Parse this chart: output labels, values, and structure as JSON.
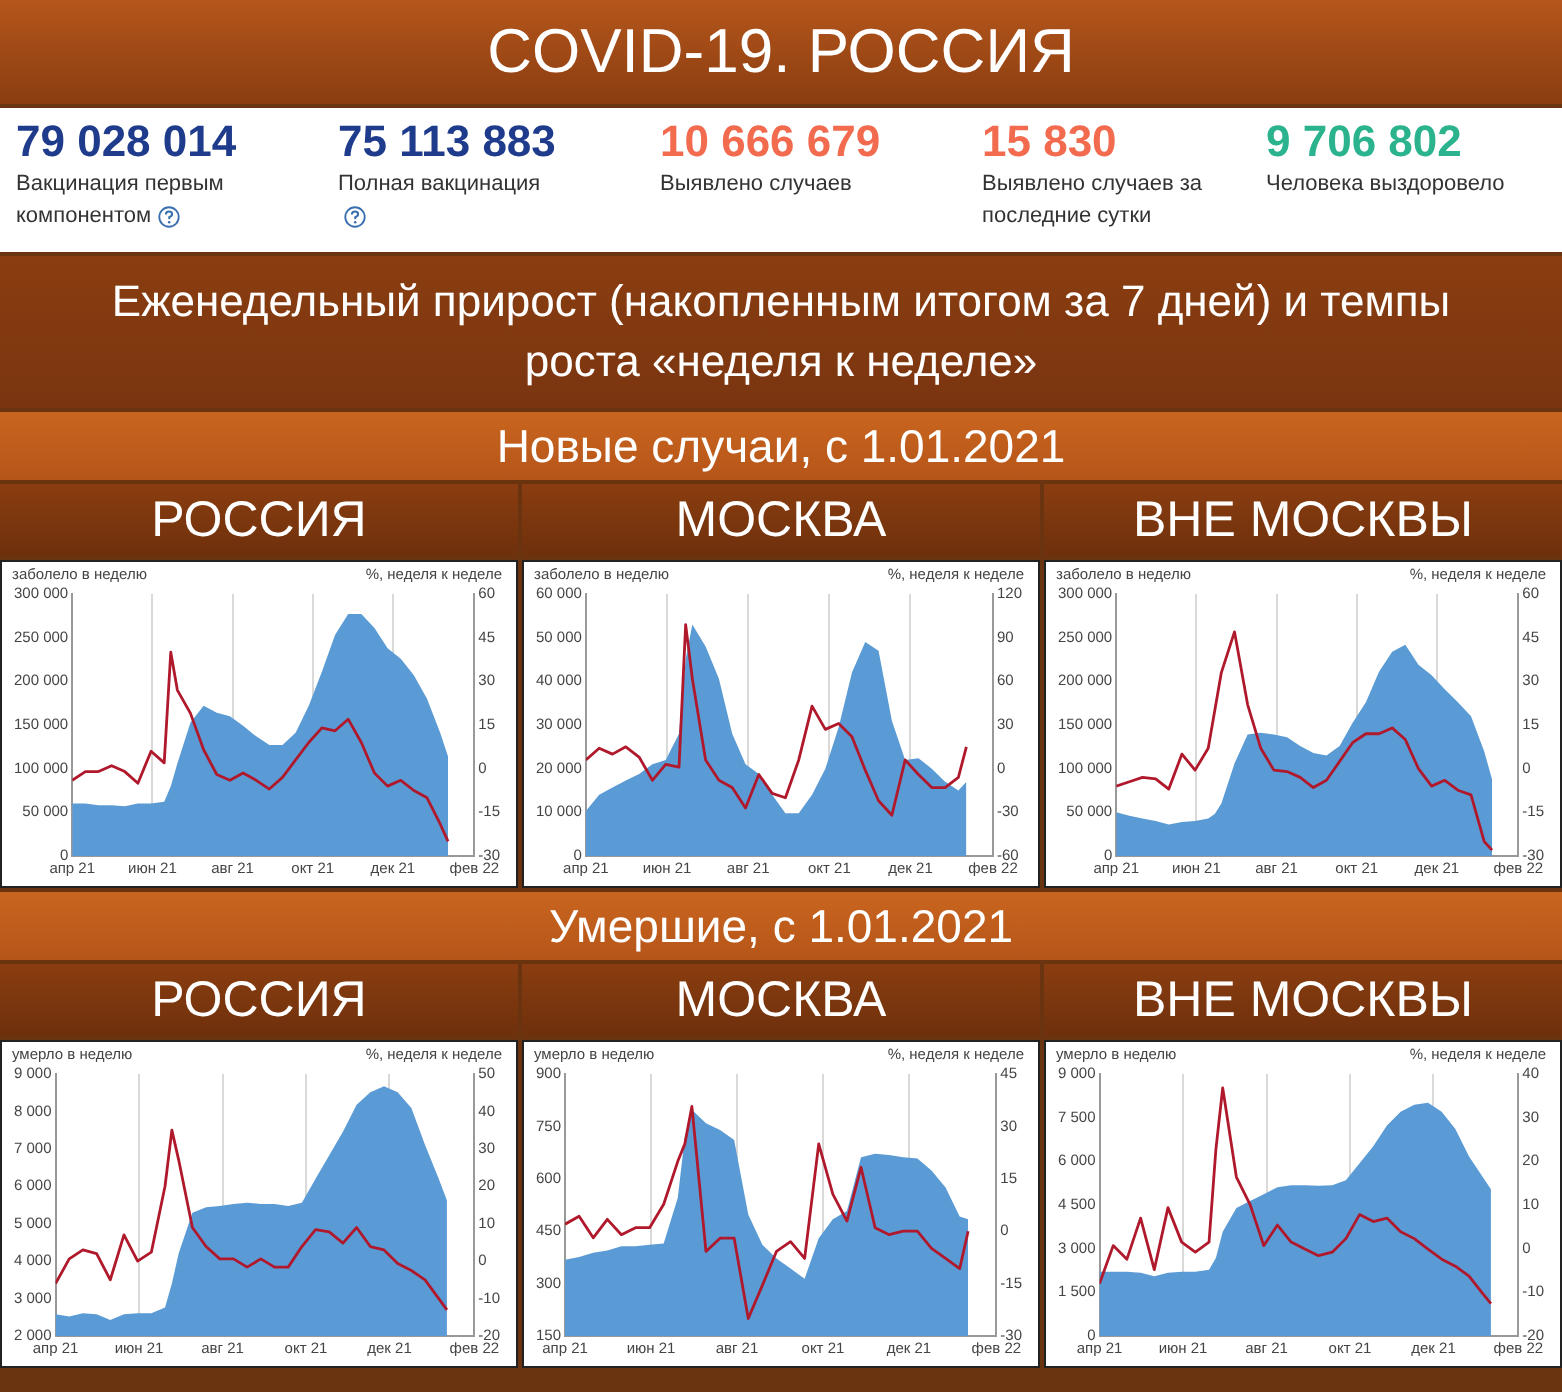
{
  "chart_data": [
    {
      "type": "other",
      "title": "COVID-19. РОССИЯ",
      "subtitle": "Еженедельный прирост (накопленным итогом за 7 дней) и темпы роста «неделя к неделе»",
      "annotations": [
        "79 028 014",
        "Вакцинация первым компонентом",
        "75 113 883",
        "Полная вакцинация",
        "10 666 679",
        "Выявлено случаев",
        "15 830",
        "Выявлено случаев за последние сутки",
        "9 706 802",
        "Человека выздоровело"
      ]
    },
    {
      "type": "other",
      "title": "Новые случаи, с 1.01.2021"
    },
    {
      "type": "area",
      "title": "РОССИЯ",
      "ylabel": "заболело в неделю",
      "y2label": "%, неделя к неделе",
      "grid": "x",
      "marker": "none",
      "x": [
        "2021-04-01",
        "2021-04-11",
        "2021-04-21",
        "2021-05-01",
        "2021-05-11",
        "2021-05-21",
        "2021-05-31",
        "2021-06-10",
        "2021-06-15",
        "2021-06-20",
        "2021-06-30",
        "2021-07-10",
        "2021-07-20",
        "2021-07-30",
        "2021-08-09",
        "2021-08-19",
        "2021-08-29",
        "2021-09-08",
        "2021-09-18",
        "2021-09-28",
        "2021-10-08",
        "2021-10-18",
        "2021-10-28",
        "2021-11-07",
        "2021-11-17",
        "2021-11-27",
        "2021-12-07",
        "2021-12-17",
        "2021-12-27",
        "2022-01-06",
        "2022-01-12"
      ],
      "xlim": [
        "2021-04-01",
        "2022-02-01"
      ],
      "xticks": [
        {
          "value": "2021-04-01",
          "label": "апр 21"
        },
        {
          "value": "2021-06-01",
          "label": "июн 21"
        },
        {
          "value": "2021-08-01",
          "label": "авг 21"
        },
        {
          "value": "2021-10-01",
          "label": "окт 21"
        },
        {
          "value": "2021-12-01",
          "label": "дек 21"
        },
        {
          "value": "2022-02-01",
          "label": "фев 22"
        }
      ],
      "ylim": [
        0,
        300000
      ],
      "yticks": [
        0,
        {
          "value": 50000,
          "label": "50 000"
        },
        {
          "value": 100000,
          "label": "100 000"
        },
        {
          "value": 150000,
          "label": "150 000"
        },
        {
          "value": 200000,
          "label": "200 000"
        },
        {
          "value": 250000,
          "label": "250 000"
        },
        {
          "value": 300000,
          "label": "300 000"
        }
      ],
      "y2lim": [
        -30,
        60
      ],
      "y2ticks": [
        -30,
        -15,
        0,
        15,
        30,
        45,
        60
      ],
      "series": [
        {
          "type": "area",
          "color": "#5b9bd5",
          "values": [
            60000,
            60000,
            58000,
            58000,
            57000,
            60000,
            60000,
            62000,
            80000,
            106000,
            153000,
            172000,
            164000,
            160000,
            149000,
            137000,
            127000,
            127000,
            141000,
            172000,
            211000,
            253000,
            277000,
            277000,
            261000,
            238000,
            226000,
            207000,
            180000,
            141000,
            114000
          ]
        },
        {
          "type": "line",
          "axis": "y2",
          "color": "#b0182c",
          "values": [
            -4,
            -1,
            -1,
            1,
            -1,
            -5,
            6,
            2,
            40,
            27,
            19,
            6.5,
            -2,
            -4,
            -1.5,
            -4,
            -7,
            -3,
            3,
            9,
            14,
            13,
            17,
            9,
            -1.5,
            -6,
            -4,
            -7.5,
            -10,
            -19,
            -25
          ]
        }
      ]
    },
    {
      "type": "area",
      "title": "МОСКВА",
      "ylabel": "заболело в неделю",
      "y2label": "%, неделя к неделе",
      "grid": "x",
      "marker": "none",
      "x": [
        "2021-04-01",
        "2021-04-11",
        "2021-04-21",
        "2021-05-01",
        "2021-05-11",
        "2021-05-21",
        "2021-05-31",
        "2021-06-10",
        "2021-06-15",
        "2021-06-20",
        "2021-06-30",
        "2021-07-10",
        "2021-07-20",
        "2021-07-30",
        "2021-08-09",
        "2021-08-19",
        "2021-08-29",
        "2021-09-08",
        "2021-09-18",
        "2021-09-28",
        "2021-10-08",
        "2021-10-18",
        "2021-10-28",
        "2021-11-07",
        "2021-11-17",
        "2021-11-27",
        "2021-12-07",
        "2021-12-17",
        "2021-12-27",
        "2022-01-06",
        "2022-01-12"
      ],
      "xlim": [
        "2021-04-01",
        "2022-02-01"
      ],
      "xticks": [
        {
          "value": "2021-04-01",
          "label": "апр 21"
        },
        {
          "value": "2021-06-01",
          "label": "июн 21"
        },
        {
          "value": "2021-08-01",
          "label": "авг 21"
        },
        {
          "value": "2021-10-01",
          "label": "окт 21"
        },
        {
          "value": "2021-12-01",
          "label": "дек 21"
        },
        {
          "value": "2022-02-01",
          "label": "фев 22"
        }
      ],
      "ylim": [
        0,
        60000
      ],
      "yticks": [
        0,
        {
          "value": 10000,
          "label": "10 000"
        },
        {
          "value": 20000,
          "label": "20 000"
        },
        {
          "value": 30000,
          "label": "30 000"
        },
        {
          "value": 40000,
          "label": "40 000"
        },
        {
          "value": 50000,
          "label": "50 000"
        },
        {
          "value": 60000,
          "label": "60 000"
        }
      ],
      "y2lim": [
        -60,
        120
      ],
      "y2ticks": [
        -60,
        -30,
        0,
        30,
        60,
        90,
        120
      ],
      "series": [
        {
          "type": "area",
          "color": "#5b9bd5",
          "values": [
            10300,
            14000,
            15700,
            17300,
            18800,
            21000,
            22000,
            28000,
            45000,
            53000,
            48000,
            40600,
            28000,
            21000,
            18800,
            14000,
            9800,
            9800,
            14000,
            20000,
            29500,
            42000,
            49000,
            47000,
            31000,
            22000,
            22400,
            20000,
            17000,
            15000,
            17000
          ]
        },
        {
          "type": "line",
          "axis": "y2",
          "color": "#b0182c",
          "values": [
            6,
            14,
            10,
            15,
            8,
            -8,
            3,
            1,
            99,
            62,
            6,
            -8,
            -13,
            -27,
            -4,
            -17,
            -20,
            6,
            43,
            27,
            31,
            22,
            -1,
            -22,
            -32,
            6,
            -4,
            -13,
            -13,
            -6,
            15
          ]
        }
      ]
    },
    {
      "type": "area",
      "title": "ВНЕ МОСКВЫ",
      "ylabel": "заболело в неделю",
      "y2label": "%, неделя к неделе",
      "grid": "x",
      "marker": "none",
      "x": [
        "2021-04-01",
        "2021-04-11",
        "2021-04-21",
        "2021-05-01",
        "2021-05-11",
        "2021-05-21",
        "2021-05-31",
        "2021-06-10",
        "2021-06-15",
        "2021-06-20",
        "2021-06-30",
        "2021-07-10",
        "2021-07-20",
        "2021-07-30",
        "2021-08-09",
        "2021-08-19",
        "2021-08-29",
        "2021-09-08",
        "2021-09-18",
        "2021-09-28",
        "2021-10-08",
        "2021-10-18",
        "2021-10-28",
        "2021-11-07",
        "2021-11-17",
        "2021-11-27",
        "2021-12-07",
        "2021-12-17",
        "2021-12-27",
        "2022-01-06",
        "2022-01-12"
      ],
      "xlim": [
        "2021-04-01",
        "2022-02-01"
      ],
      "xticks": [
        {
          "value": "2021-04-01",
          "label": "апр 21"
        },
        {
          "value": "2021-06-01",
          "label": "июн 21"
        },
        {
          "value": "2021-08-01",
          "label": "авг 21"
        },
        {
          "value": "2021-10-01",
          "label": "окт 21"
        },
        {
          "value": "2021-12-01",
          "label": "дек 21"
        },
        {
          "value": "2022-02-01",
          "label": "фев 22"
        }
      ],
      "ylim": [
        0,
        300000
      ],
      "yticks": [
        0,
        {
          "value": 50000,
          "label": "50 000"
        },
        {
          "value": 100000,
          "label": "100 000"
        },
        {
          "value": 150000,
          "label": "150 000"
        },
        {
          "value": 200000,
          "label": "200 000"
        },
        {
          "value": 250000,
          "label": "250 000"
        },
        {
          "value": 300000,
          "label": "300 000"
        }
      ],
      "y2lim": [
        -30,
        60
      ],
      "y2ticks": [
        -30,
        -15,
        0,
        15,
        30,
        45,
        60
      ],
      "series": [
        {
          "type": "area",
          "color": "#5b9bd5",
          "values": [
            50000,
            46000,
            43000,
            40000,
            36000,
            39000,
            40000,
            43000,
            48000,
            60000,
            106000,
            139000,
            141000,
            139000,
            136000,
            126000,
            118000,
            115000,
            126000,
            153000,
            176000,
            211000,
            234000,
            242000,
            219000,
            207000,
            191000,
            176000,
            160000,
            120000,
            88000
          ]
        },
        {
          "type": "line",
          "axis": "y2",
          "color": "#b0182c",
          "values": [
            -6,
            -4.5,
            -3,
            -3.5,
            -7,
            5,
            -0.5,
            7,
            20,
            33,
            47,
            22,
            7,
            -0.5,
            -1,
            -3,
            -6.5,
            -4,
            2.5,
            9,
            12,
            12,
            14,
            10,
            0,
            -6,
            -4,
            -7.4,
            -9,
            -25,
            -28
          ]
        }
      ]
    },
    {
      "type": "other",
      "title": "Умершие, с 1.01.2021"
    },
    {
      "type": "area",
      "title": "РОССИЯ",
      "ylabel": "умерло в неделю",
      "y2label": "%, неделя к неделе",
      "grid": "x",
      "marker": "none",
      "x": [
        "2021-04-01",
        "2021-04-11",
        "2021-04-21",
        "2021-05-01",
        "2021-05-11",
        "2021-05-21",
        "2021-05-31",
        "2021-06-10",
        "2021-06-20",
        "2021-06-25",
        "2021-06-30",
        "2021-07-10",
        "2021-07-20",
        "2021-07-30",
        "2021-08-09",
        "2021-08-19",
        "2021-08-29",
        "2021-09-08",
        "2021-09-18",
        "2021-09-28",
        "2021-10-08",
        "2021-10-18",
        "2021-10-28",
        "2021-11-07",
        "2021-11-17",
        "2021-11-27",
        "2021-12-07",
        "2021-12-17",
        "2021-12-27",
        "2022-01-06",
        "2022-01-12"
      ],
      "xlim": [
        "2021-04-01",
        "2022-02-01"
      ],
      "xticks": [
        {
          "value": "2021-04-01",
          "label": "апр 21"
        },
        {
          "value": "2021-06-01",
          "label": "июн 21"
        },
        {
          "value": "2021-08-01",
          "label": "авг 21"
        },
        {
          "value": "2021-10-01",
          "label": "окт 21"
        },
        {
          "value": "2021-12-01",
          "label": "дек 21"
        },
        {
          "value": "2022-02-01",
          "label": "фев 22"
        }
      ],
      "ylim": [
        2000,
        9000
      ],
      "yticks": [
        {
          "value": 2000,
          "label": "2 000"
        },
        {
          "value": 3000,
          "label": "3 000"
        },
        {
          "value": 4000,
          "label": "4 000"
        },
        {
          "value": 5000,
          "label": "5 000"
        },
        {
          "value": 6000,
          "label": "6 000"
        },
        {
          "value": 7000,
          "label": "7 000"
        },
        {
          "value": 8000,
          "label": "8 000"
        },
        {
          "value": 9000,
          "label": "9 000"
        }
      ],
      "y2lim": [
        -20,
        50
      ],
      "y2ticks": [
        -20,
        -10,
        0,
        10,
        20,
        30,
        40,
        50
      ],
      "series": [
        {
          "type": "area",
          "color": "#5b9bd5",
          "values": [
            2580,
            2520,
            2610,
            2580,
            2430,
            2580,
            2610,
            2610,
            2760,
            3400,
            4210,
            5290,
            5440,
            5470,
            5530,
            5560,
            5530,
            5530,
            5470,
            5560,
            6200,
            6830,
            7460,
            8180,
            8510,
            8670,
            8510,
            8090,
            7100,
            6200,
            5620
          ]
        },
        {
          "type": "line",
          "axis": "y2",
          "color": "#b0182c",
          "values": [
            -6,
            0.6,
            3,
            2,
            -5,
            7,
            0,
            2.4,
            20,
            35,
            27,
            9,
            3.9,
            0.6,
            0.6,
            -1.6,
            0.6,
            -1.6,
            -1.6,
            3.9,
            8.4,
            7.8,
            4.8,
            9,
            3.9,
            3,
            -0.6,
            -2.5,
            -5,
            -10,
            -13
          ]
        }
      ]
    },
    {
      "type": "area",
      "title": "МОСКВА",
      "ylabel": "умерло в неделю",
      "y2label": "%, неделя к неделе",
      "grid": "x",
      "marker": "none",
      "x": [
        "2021-04-01",
        "2021-04-11",
        "2021-04-21",
        "2021-05-01",
        "2021-05-11",
        "2021-05-21",
        "2021-05-31",
        "2021-06-10",
        "2021-06-20",
        "2021-06-25",
        "2021-06-30",
        "2021-07-10",
        "2021-07-20",
        "2021-07-30",
        "2021-08-09",
        "2021-08-19",
        "2021-08-29",
        "2021-09-08",
        "2021-09-18",
        "2021-09-28",
        "2021-10-08",
        "2021-10-18",
        "2021-10-28",
        "2021-11-07",
        "2021-11-17",
        "2021-11-27",
        "2021-12-07",
        "2021-12-17",
        "2021-12-27",
        "2022-01-06",
        "2022-01-12"
      ],
      "xlim": [
        "2021-04-01",
        "2022-02-01"
      ],
      "xticks": [
        {
          "value": "2021-04-01",
          "label": "апр 21"
        },
        {
          "value": "2021-06-01",
          "label": "июн 21"
        },
        {
          "value": "2021-08-01",
          "label": "авг 21"
        },
        {
          "value": "2021-10-01",
          "label": "окт 21"
        },
        {
          "value": "2021-12-01",
          "label": "дек 21"
        },
        {
          "value": "2022-02-01",
          "label": "фев 22"
        }
      ],
      "ylim": [
        150,
        900
      ],
      "yticks": [
        150,
        300,
        450,
        600,
        750,
        900
      ],
      "y2lim": [
        -30,
        45
      ],
      "y2ticks": [
        -30,
        -15,
        0,
        15,
        30,
        45
      ],
      "series": [
        {
          "type": "area",
          "color": "#5b9bd5",
          "values": [
            368,
            376,
            388,
            395,
            407,
            407,
            411,
            415,
            546,
            720,
            798,
            759,
            740,
            711,
            498,
            411,
            372,
            343,
            314,
            430,
            484,
            508,
            662,
            672,
            668,
            662,
            658,
            624,
            575,
            492,
            484
          ]
        },
        {
          "type": "line",
          "axis": "y2",
          "color": "#b0182c",
          "values": [
            2,
            4.3,
            -1.9,
            3.4,
            -1,
            1,
            1,
            7.7,
            20,
            25,
            35.7,
            -5.8,
            -2,
            -2,
            -25,
            -15.5,
            -5.8,
            -3,
            -7.8,
            25,
            10.6,
            2.9,
            18.3,
            1,
            -1,
            0,
            0,
            -4.9,
            -7.8,
            -10.7,
            0
          ]
        }
      ]
    },
    {
      "type": "area",
      "title": "ВНЕ МОСКВЫ",
      "ylabel": "умерло в неделю",
      "y2label": "%, неделя к неделе",
      "grid": "x",
      "marker": "none",
      "x": [
        "2021-04-01",
        "2021-04-11",
        "2021-04-21",
        "2021-05-01",
        "2021-05-11",
        "2021-05-21",
        "2021-05-31",
        "2021-06-10",
        "2021-06-20",
        "2021-06-25",
        "2021-06-30",
        "2021-07-10",
        "2021-07-20",
        "2021-07-30",
        "2021-08-09",
        "2021-08-19",
        "2021-08-29",
        "2021-09-08",
        "2021-09-18",
        "2021-09-28",
        "2021-10-08",
        "2021-10-18",
        "2021-10-28",
        "2021-11-07",
        "2021-11-17",
        "2021-11-27",
        "2021-12-07",
        "2021-12-17",
        "2021-12-27",
        "2022-01-06",
        "2022-01-12"
      ],
      "xlim": [
        "2021-04-01",
        "2022-02-01"
      ],
      "xticks": [
        {
          "value": "2021-04-01",
          "label": "апр 21"
        },
        {
          "value": "2021-06-01",
          "label": "июн 21"
        },
        {
          "value": "2021-08-01",
          "label": "авг 21"
        },
        {
          "value": "2021-10-01",
          "label": "окт 21"
        },
        {
          "value": "2021-12-01",
          "label": "дек 21"
        },
        {
          "value": "2022-02-01",
          "label": "фев 22"
        }
      ],
      "ylim": [
        0,
        9000
      ],
      "yticks": [
        0,
        {
          "value": 1500,
          "label": "1 500"
        },
        {
          "value": 3000,
          "label": "3 000"
        },
        {
          "value": 4500,
          "label": "4 500"
        },
        {
          "value": 6000,
          "label": "6 000"
        },
        {
          "value": 7500,
          "label": "7 500"
        },
        {
          "value": 9000,
          "label": "9 000"
        }
      ],
      "y2lim": [
        -20,
        40
      ],
      "y2ticks": [
        -20,
        -10,
        0,
        10,
        20,
        30,
        40
      ],
      "series": [
        {
          "type": "area",
          "color": "#5b9bd5",
          "values": [
            2210,
            2210,
            2210,
            2170,
            2050,
            2170,
            2210,
            2210,
            2280,
            2680,
            3580,
            4400,
            4640,
            4870,
            5110,
            5180,
            5180,
            5160,
            5180,
            5350,
            5930,
            6520,
            7230,
            7700,
            7940,
            8010,
            7700,
            7110,
            6170,
            5460,
            5040
          ]
        },
        {
          "type": "line",
          "axis": "y2",
          "color": "#b0182c",
          "values": [
            -8,
            0.7,
            -2.4,
            7,
            -4.8,
            9.4,
            1.5,
            -0.8,
            1.5,
            22.7,
            36.8,
            16.4,
            10.1,
            0.7,
            5.4,
            1.5,
            -0.1,
            -1.6,
            -0.8,
            2.3,
            7.8,
            6.2,
            7,
            3.9,
            2.3,
            -0.1,
            -2.4,
            -4,
            -6.3,
            -10.3,
            -12.6
          ]
        }
      ]
    }
  ]
}
